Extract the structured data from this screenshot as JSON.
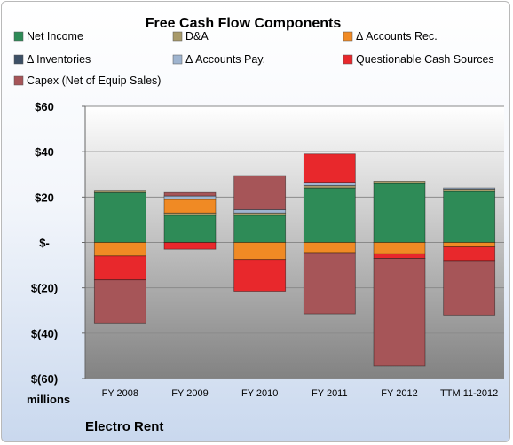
{
  "chart_data": {
    "type": "bar",
    "stacked": true,
    "title": "Free Cash Flow Components",
    "units_label": "millions",
    "company": "Electro Rent",
    "categories": [
      "FY 2008",
      "FY 2009",
      "FY 2010",
      "FY 2011",
      "FY 2012",
      "TTM 11-2012"
    ],
    "ylim": [
      -60,
      60
    ],
    "yticks": [
      60,
      40,
      20,
      0,
      -20,
      -40,
      -60
    ],
    "ytick_labels": [
      "$60",
      "$40",
      "$20",
      "$-",
      "$(20)",
      "$(40)",
      "$(60)"
    ],
    "grid": true,
    "legend_position": "top",
    "series": [
      {
        "name": "Net Income",
        "color": "#2e8b57",
        "values": [
          22,
          12,
          12,
          24,
          26,
          22.5
        ]
      },
      {
        "name": "D&A",
        "color": "#a89a6a",
        "values": [
          1,
          1,
          1,
          1,
          1,
          1
        ]
      },
      {
        "name": "Δ Accounts Rec.",
        "color": "#f08a24",
        "values": [
          -6,
          6,
          -7.5,
          -4.5,
          -5,
          -2
        ]
      },
      {
        "name": "Δ Inventories",
        "color": "#3d5066",
        "values": [
          0,
          0,
          0,
          0,
          0,
          0
        ]
      },
      {
        "name": "Δ Accounts Pay.",
        "color": "#9fb4cf",
        "values": [
          0,
          1.5,
          1.5,
          1.5,
          0,
          0.5
        ]
      },
      {
        "name": "Questionable Cash Sources",
        "color": "#e8282c",
        "values": [
          -10.5,
          -3,
          -14,
          12.5,
          -2,
          -6
        ]
      },
      {
        "name": "Capex (Net of Equip Sales)",
        "color": "#a65558",
        "values": [
          -19,
          1.5,
          15,
          -27,
          -47.5,
          -24
        ]
      }
    ]
  }
}
